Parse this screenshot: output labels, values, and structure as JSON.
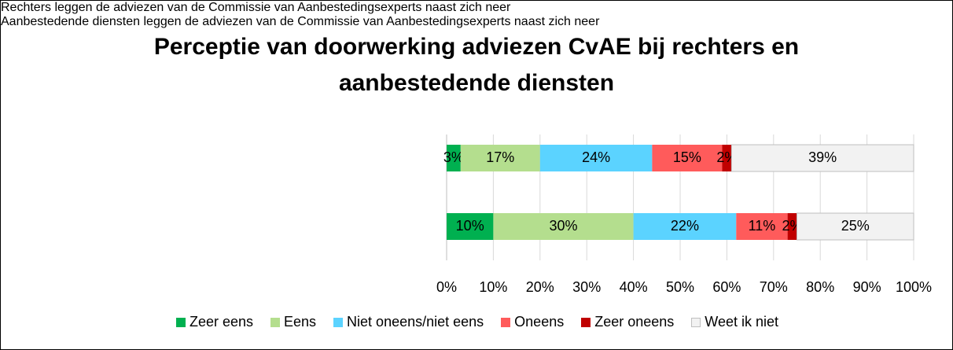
{
  "chart_data": {
    "type": "stacked-barh",
    "title": "Perceptie van doorwerking adviezen CvAE bij rechters en aanbestedende diensten",
    "categories": [
      "Rechters leggen de adviezen van de Commissie van Aanbestedingsexperts naast zich neer",
      "Aanbestedende diensten leggen de adviezen van de Commissie van Aanbestedingsexperts naast zich neer"
    ],
    "series": [
      {
        "name": "Zeer eens",
        "color": "#00b050",
        "values": [
          3,
          10
        ],
        "value_labels": [
          "3%",
          "10%"
        ]
      },
      {
        "name": "Eens",
        "color": "#b4de8e",
        "values": [
          17,
          30
        ],
        "value_labels": [
          "17%",
          "30%"
        ]
      },
      {
        "name": "Niet oneens/niet eens",
        "color": "#5bd3ff",
        "values": [
          24,
          22
        ],
        "value_labels": [
          "24%",
          "22%"
        ]
      },
      {
        "name": "Oneens",
        "color": "#ff5b5b",
        "values": [
          15,
          11
        ],
        "value_labels": [
          "15%",
          "11%"
        ]
      },
      {
        "name": "Zeer oneens",
        "color": "#c00000",
        "values": [
          2,
          2
        ],
        "value_labels": [
          "2%",
          "2%"
        ]
      },
      {
        "name": "Weet ik niet",
        "color": "#f2f2f2",
        "values": [
          39,
          25
        ],
        "value_labels": [
          "39%",
          "25%"
        ]
      }
    ],
    "xlim": [
      0,
      100
    ],
    "xticks": [
      {
        "value": 0,
        "label": "0%"
      },
      {
        "value": 10,
        "label": "10%"
      },
      {
        "value": 20,
        "label": "20%"
      },
      {
        "value": 30,
        "label": "30%"
      },
      {
        "value": 40,
        "label": "40%"
      },
      {
        "value": 50,
        "label": "50%"
      },
      {
        "value": 60,
        "label": "60%"
      },
      {
        "value": 70,
        "label": "70%"
      },
      {
        "value": 80,
        "label": "80%"
      },
      {
        "value": 90,
        "label": "90%"
      },
      {
        "value": 100,
        "label": "100%"
      }
    ],
    "grid": true,
    "legend": "bottom"
  }
}
